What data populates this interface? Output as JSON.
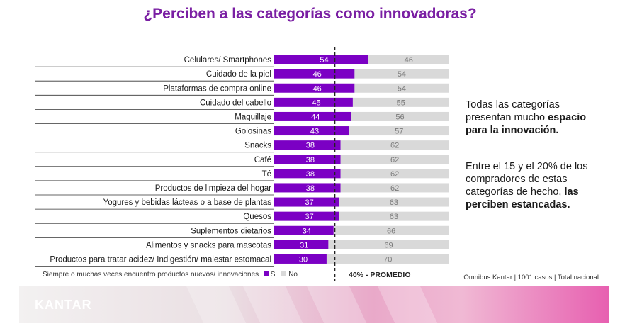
{
  "page": {
    "title": "¿Perciben a las categorías como innovadoras?",
    "side_text": {
      "p1_pre": "Todas las categorías presentan mucho ",
      "p1_bold": "espacio para la innovación.",
      "p2_pre": "Entre el 15 y el 20% de los compradores de estas categorías de hecho, ",
      "p2_bold": "las perciben estancadas."
    },
    "legend": {
      "question": "Siempre o muchas veces encuentro productos nuevos/ innovaciones",
      "si": "Si",
      "no": "No"
    },
    "average_label": "40% - PROMEDIO",
    "source": "Omnibus Kantar | 1001 casos | Total nacional",
    "logo": "KANTAR"
  },
  "colors": {
    "si": "#7b00c4",
    "no": "#d9d9d9",
    "title": "#7a1fa3"
  },
  "chart_data": {
    "type": "bar",
    "orientation": "horizontal-stacked",
    "categories": [
      "Celulares/ Smartphones",
      "Cuidado de la piel",
      "Plataformas de compra online",
      "Cuidado del cabello",
      "Maquillaje",
      "Golosinas",
      "Snacks",
      "Café",
      "Té",
      "Productos de limpieza del hogar",
      "Yogures y bebidas lácteas o a base de plantas",
      "Quesos",
      "Suplementos dietarios",
      "Alimentos y snacks para mascotas",
      "Productos para tratar acidez/ Indigestión/ malestar estomacal"
    ],
    "series": [
      {
        "name": "Si",
        "values": [
          54,
          46,
          46,
          45,
          44,
          43,
          38,
          38,
          38,
          38,
          37,
          37,
          34,
          31,
          30
        ]
      },
      {
        "name": "No",
        "values": [
          46,
          54,
          54,
          55,
          56,
          57,
          62,
          62,
          62,
          62,
          63,
          63,
          66,
          69,
          70
        ]
      }
    ],
    "reference_line": {
      "value": 40,
      "label": "40% - PROMEDIO"
    },
    "xlim": [
      0,
      100
    ]
  }
}
